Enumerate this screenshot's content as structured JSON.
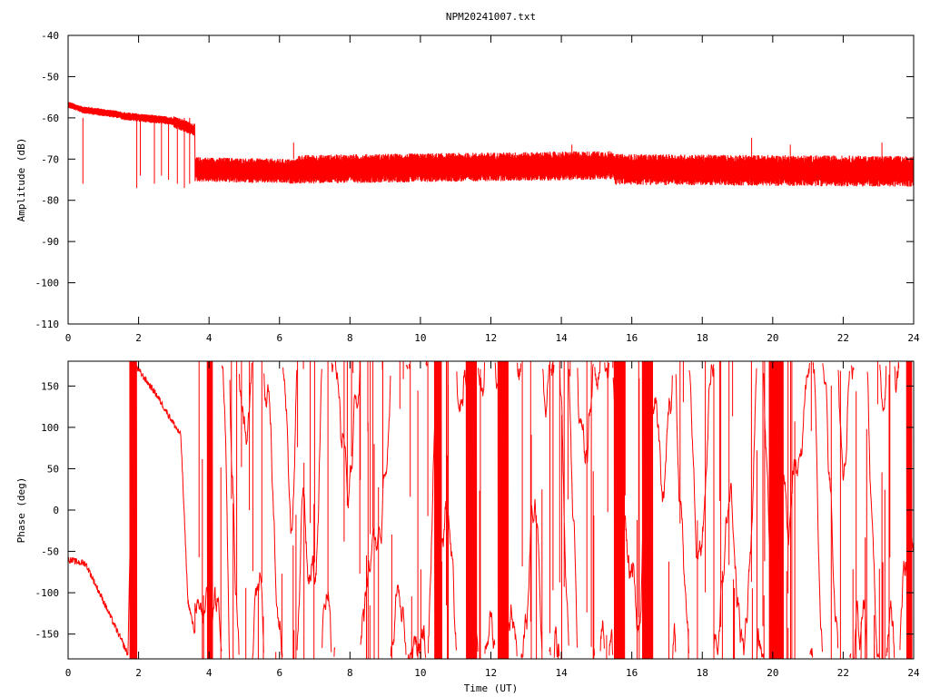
{
  "chart_data": [
    {
      "type": "line",
      "title": "NPM20241007.txt",
      "xlabel": "",
      "ylabel": "Amplitude (dB)",
      "xlim": [
        0,
        24
      ],
      "ylim": [
        -110,
        -40
      ],
      "x_ticks": [
        "0",
        "2",
        "4",
        "6",
        "8",
        "10",
        "12",
        "14",
        "16",
        "18",
        "20",
        "22",
        "24"
      ],
      "y_ticks": [
        "-40",
        "-50",
        "-60",
        "-70",
        "-80",
        "-90",
        "-100",
        "-110"
      ],
      "grid": false,
      "series": [
        {
          "color": "#ff0000",
          "segments": [
            {
              "x0": 0.0,
              "x1": 0.4,
              "mean_start": -56.8,
              "mean_end": -58.0,
              "spread": 1.6
            },
            {
              "x0": 0.4,
              "x1": 1.5,
              "mean_start": -58.0,
              "mean_end": -59.3,
              "spread": 1.8
            },
            {
              "x0": 1.5,
              "x1": 3.0,
              "mean_start": -59.5,
              "mean_end": -60.8,
              "spread": 2.0
            },
            {
              "x0": 3.0,
              "x1": 3.6,
              "mean_start": -61.0,
              "mean_end": -63.0,
              "spread": 3.0
            },
            {
              "x0": 3.6,
              "x1": 6.5,
              "mean_start": -72.5,
              "mean_end": -73.0,
              "spread": 6.0
            },
            {
              "x0": 6.5,
              "x1": 15.5,
              "mean_start": -72.5,
              "mean_end": -71.5,
              "spread": 7.0
            },
            {
              "x0": 15.5,
              "x1": 24.0,
              "mean_start": -72.5,
              "mean_end": -73.0,
              "spread": 7.5
            }
          ],
          "dropouts": [
            {
              "x": 0.42,
              "y": -76
            },
            {
              "x": 1.95,
              "y": -77
            },
            {
              "x": 2.05,
              "y": -74
            },
            {
              "x": 2.45,
              "y": -76
            },
            {
              "x": 2.65,
              "y": -74
            },
            {
              "x": 2.85,
              "y": -75
            },
            {
              "x": 3.1,
              "y": -76
            },
            {
              "x": 3.3,
              "y": -77
            },
            {
              "x": 3.45,
              "y": -76
            }
          ],
          "spikes": [
            {
              "x": 6.4,
              "y": -66
            },
            {
              "x": 14.3,
              "y": -66.5
            },
            {
              "x": 19.4,
              "y": -64.8
            },
            {
              "x": 20.5,
              "y": -66.5
            },
            {
              "x": 23.1,
              "y": -66
            }
          ]
        }
      ]
    },
    {
      "type": "line",
      "title": "",
      "xlabel": "Time (UT)",
      "ylabel": "Phase (deg)",
      "xlim": [
        0,
        24
      ],
      "ylim": [
        -180,
        180
      ],
      "x_ticks": [
        "0",
        "2",
        "4",
        "6",
        "8",
        "10",
        "12",
        "14",
        "16",
        "18",
        "20",
        "22",
        "24"
      ],
      "y_ticks": [
        "150",
        "100",
        "50",
        "0",
        "-50",
        "-100",
        "-150"
      ],
      "grid": false,
      "series": [
        {
          "color": "#ff0000",
          "trend_points": [
            {
              "x": 0.0,
              "y": -60
            },
            {
              "x": 0.5,
              "y": -65
            },
            {
              "x": 1.0,
              "y": -110
            },
            {
              "x": 1.7,
              "y": -175
            },
            {
              "x": 1.85,
              "y": 178
            },
            {
              "x": 2.5,
              "y": 140
            },
            {
              "x": 3.2,
              "y": 90
            },
            {
              "x": 3.4,
              "y": -110
            },
            {
              "x": 3.6,
              "y": -150
            }
          ],
          "noise_from_x": 3.6,
          "noise_to_x": 24.0,
          "dense_wrap_bands": [
            [
              1.75,
              1.95
            ],
            [
              3.95,
              4.1
            ],
            [
              10.4,
              10.6
            ],
            [
              11.3,
              11.6
            ],
            [
              12.2,
              12.5
            ],
            [
              15.5,
              15.8
            ],
            [
              16.3,
              16.6
            ],
            [
              19.9,
              20.3
            ],
            [
              23.8,
              23.95
            ]
          ]
        }
      ]
    }
  ]
}
